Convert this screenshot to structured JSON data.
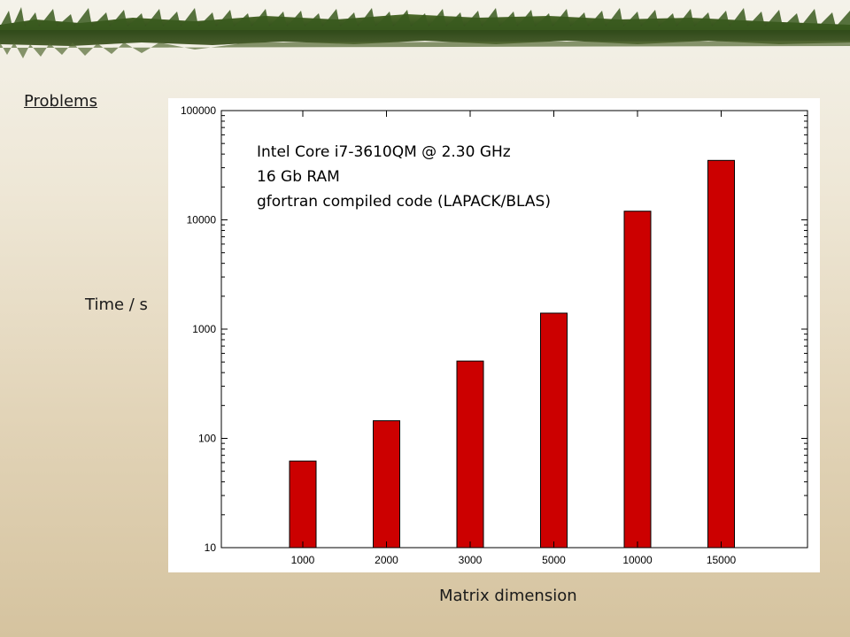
{
  "slide": {
    "heading": "Problems"
  },
  "chart_data": {
    "type": "bar",
    "categories": [
      "1000",
      "2000",
      "3000",
      "5000",
      "10000",
      "15000"
    ],
    "values": [
      62,
      145,
      510,
      1400,
      12000,
      35000
    ],
    "ylabel": "Time / s",
    "xlabel": "Matrix dimension",
    "yscale": "log",
    "ylim": [
      10,
      100000
    ],
    "yticks": [
      "10",
      "100",
      "1000",
      "10000",
      "100000"
    ],
    "annotation": [
      "Intel Core i7-3610QM @ 2.30 GHz",
      "16 Gb RAM",
      "gfortran compiled code (LAPACK/BLAS)"
    ],
    "bar_color": "#cc0000",
    "grid": false,
    "legend": "none"
  }
}
